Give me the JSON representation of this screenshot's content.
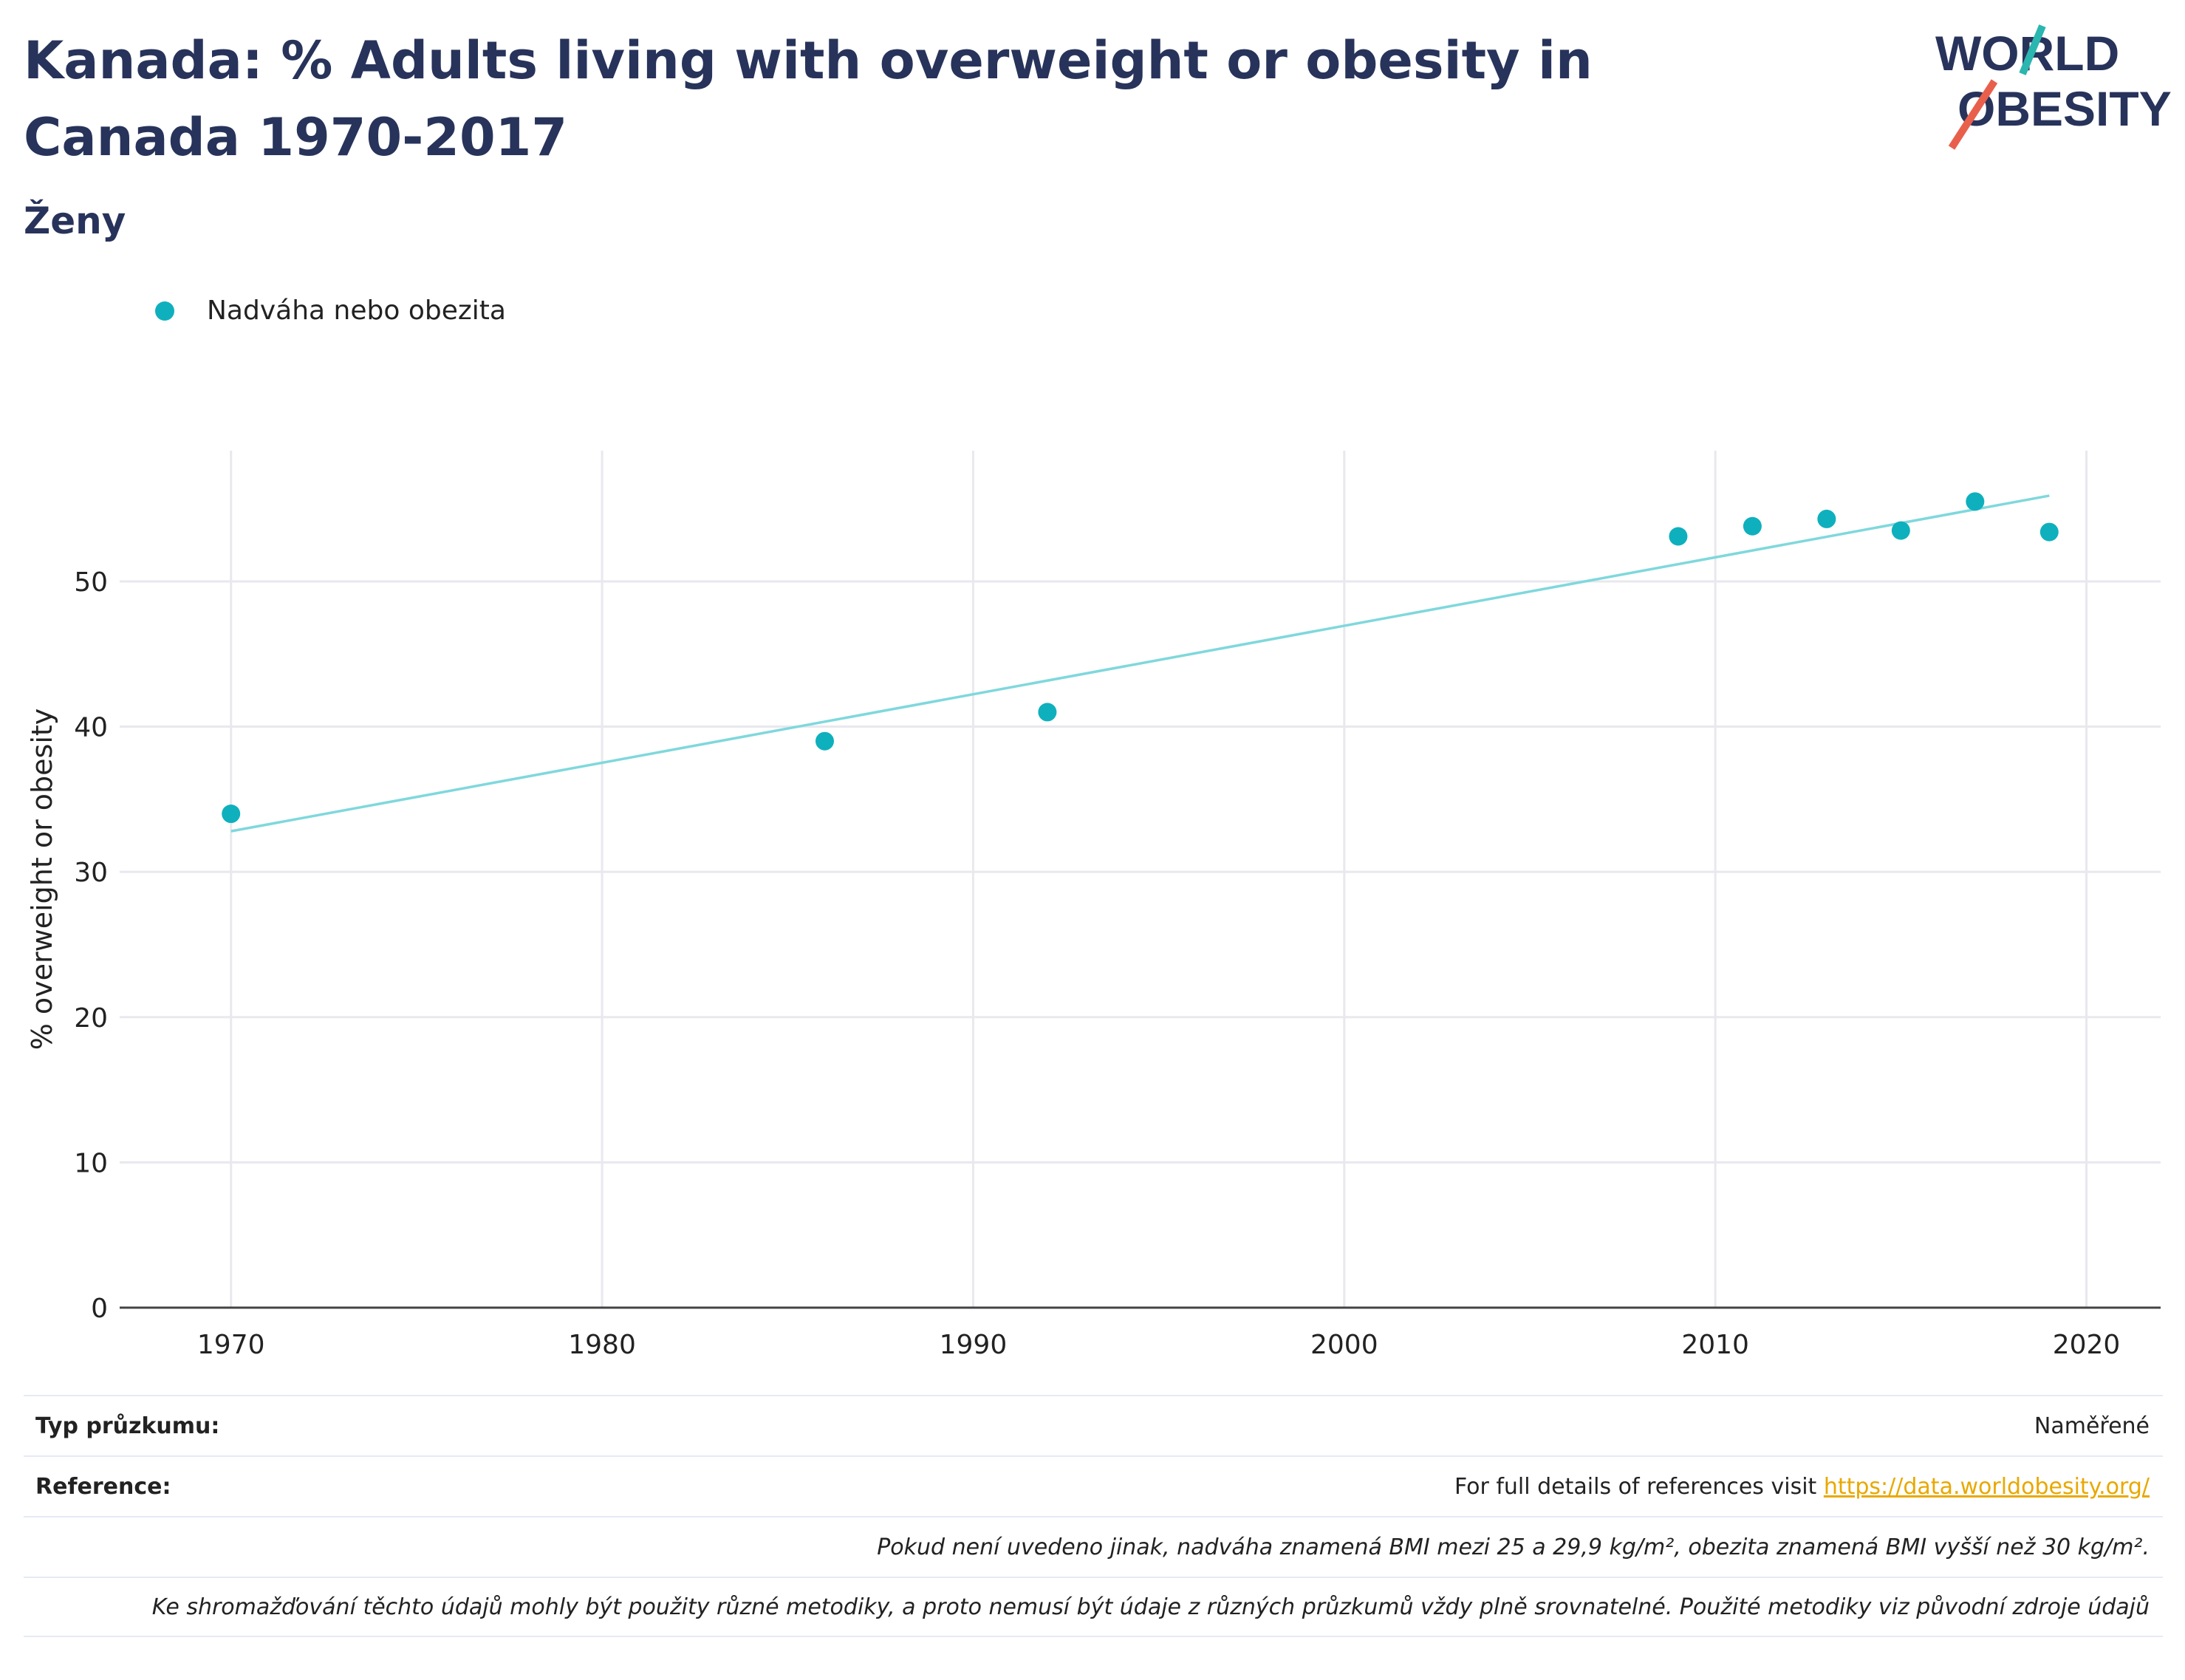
{
  "header": {
    "title": "Kanada: % Adults living with overweight or obesity in Canada 1970-2017",
    "subtitle": "Ženy"
  },
  "logo": {
    "line1": "WORLD",
    "line2": "OBESITY",
    "accent_teal": "#2bb6b0",
    "accent_red": "#e8604c"
  },
  "legend": {
    "label": "Nadváha nebo obezita",
    "color": "#0fb0bd"
  },
  "footer": {
    "survey_label": "Typ průzkumu:",
    "survey_value": "Naměřené",
    "reference_label": "Reference:",
    "reference_text": "For full details of references visit ",
    "reference_link": "https://data.worldobesity.org/",
    "note1": "Pokud není uvedeno jinak, nadváha znamená BMI mezi 25 a 29,9 kg/m², obezita znamená BMI vyšší než 30 kg/m².",
    "note2": "Ke shromažďování těchto údajů mohly být použity různé metodiky, a proto nemusí být údaje z různých průzkumů vždy plně srovnatelné. Použité metodiky viz původní zdroje údajů"
  },
  "chart_data": {
    "type": "scatter",
    "title": "Kanada: % Adults living with overweight or obesity in Canada 1970-2017",
    "subtitle": "Ženy",
    "xlabel": "",
    "ylabel": "% overweight or obesity",
    "xlim": [
      1967,
      2022
    ],
    "ylim": [
      0,
      59
    ],
    "xticks": [
      1970,
      1980,
      1990,
      2000,
      2010,
      2020
    ],
    "yticks": [
      0,
      10,
      20,
      30,
      40,
      50
    ],
    "grid": true,
    "legend_position": "top-left",
    "series": [
      {
        "name": "Nadváha nebo obezita",
        "color": "#0fb0bd",
        "x": [
          1970,
          1986,
          1992,
          2009,
          2011,
          2013,
          2015,
          2017,
          2019
        ],
        "y": [
          34.0,
          39.0,
          41.0,
          53.1,
          53.8,
          54.3,
          53.5,
          55.5,
          53.4
        ]
      }
    ],
    "trendline": {
      "color": "#7fd8dc",
      "x": [
        1970,
        2019
      ],
      "y": [
        32.8,
        55.9
      ]
    }
  }
}
